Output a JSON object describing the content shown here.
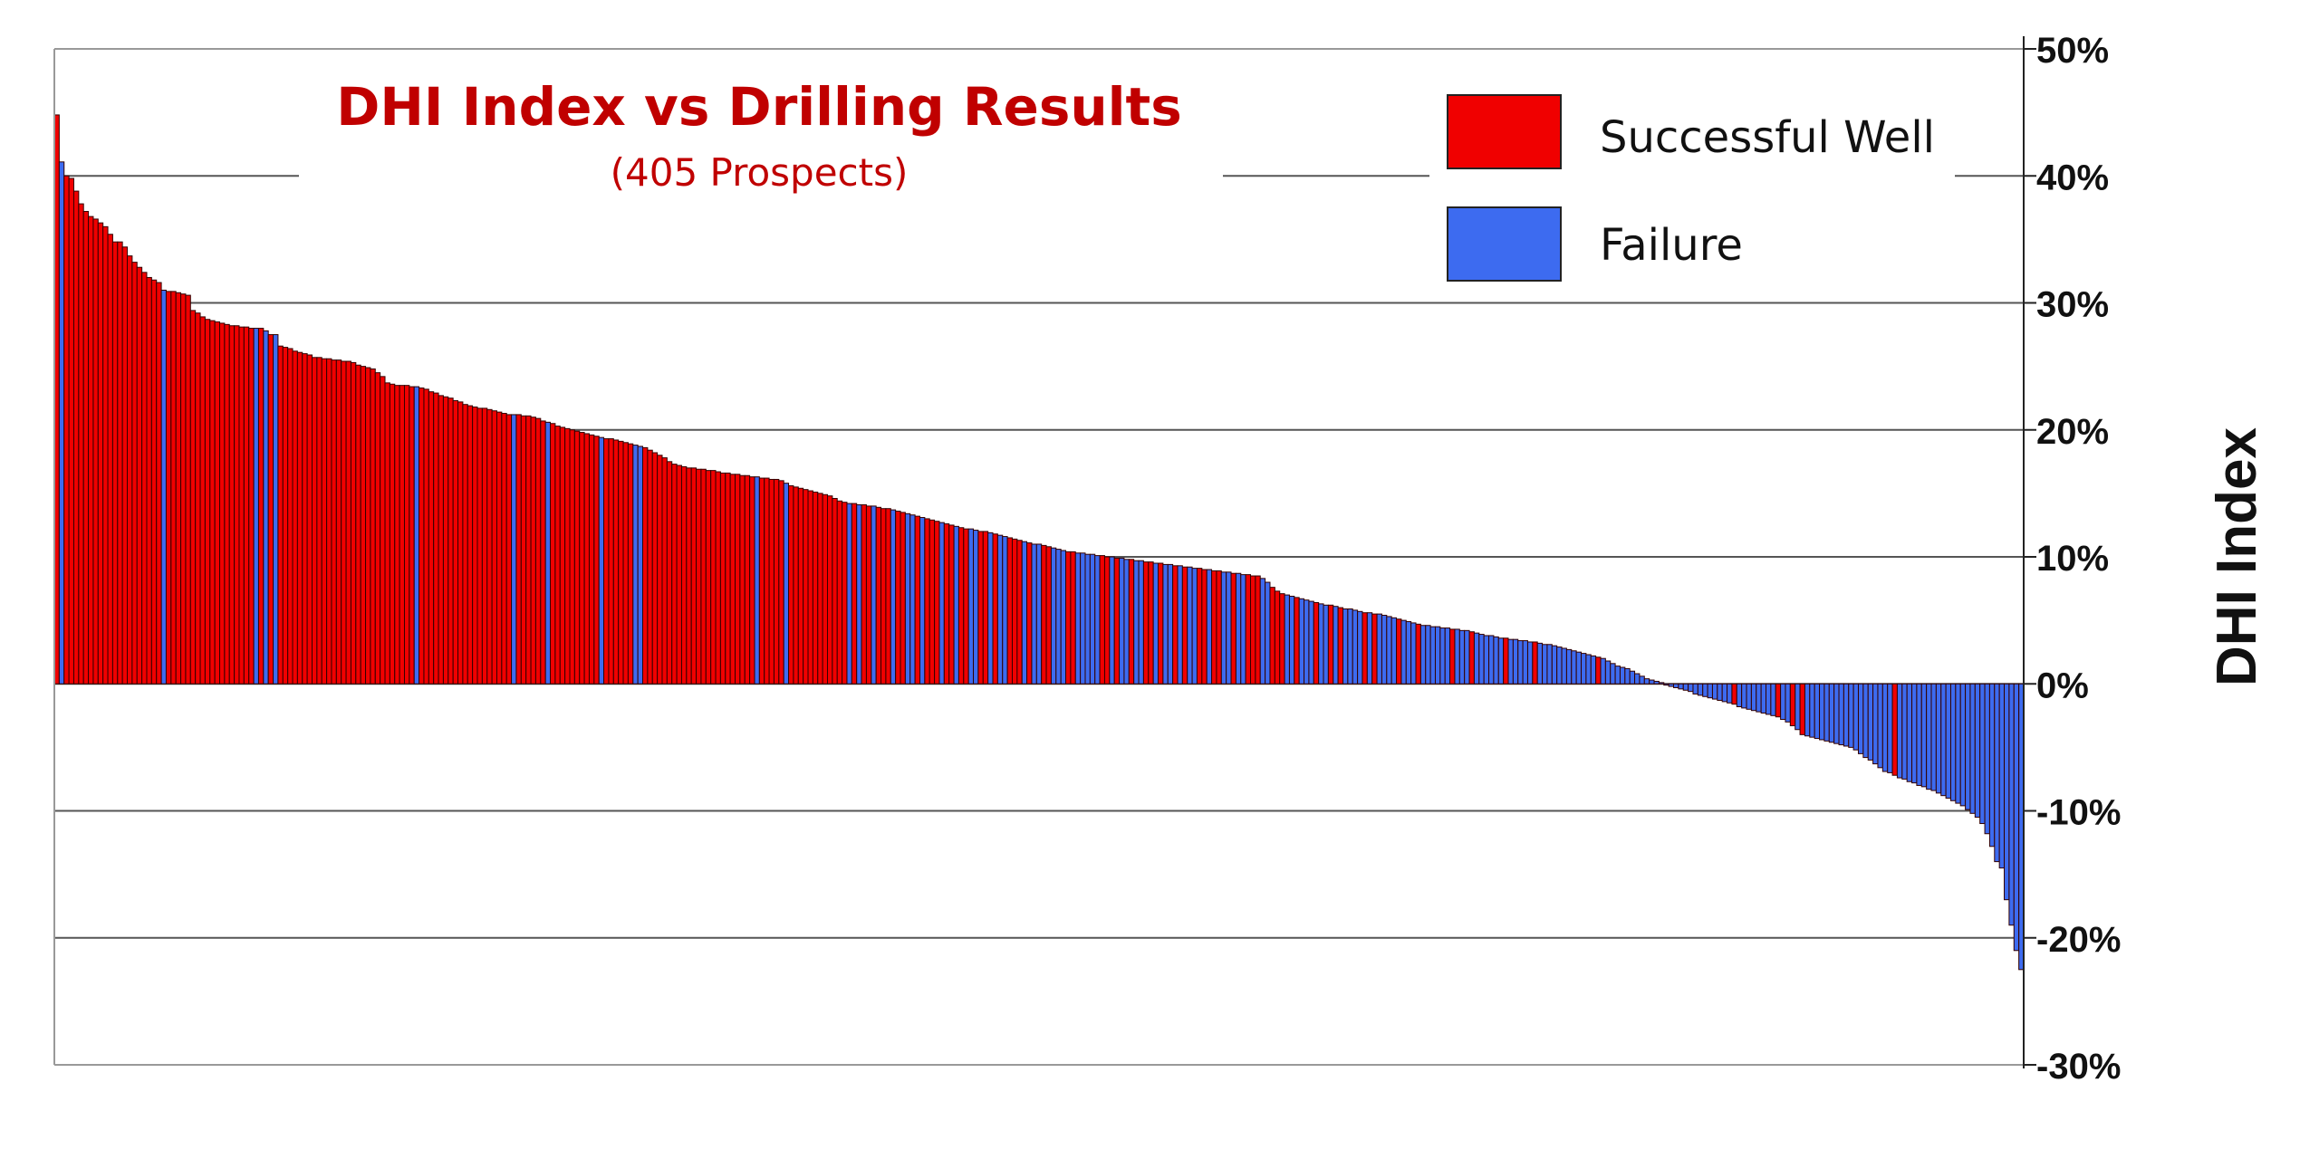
{
  "chart_data": {
    "type": "bar",
    "title": "DHI Index vs Drilling Results",
    "subtitle": "(405 Prospects)",
    "xlabel": "",
    "ylabel": "DHI Index",
    "ylim": [
      -30,
      50
    ],
    "y_ticks": [
      50,
      40,
      30,
      20,
      10,
      0,
      -10,
      -20,
      -30
    ],
    "y_tick_labels": [
      "50%",
      "40%",
      "30%",
      "20%",
      "10%",
      "0%",
      "-10%",
      "-20%",
      "-30%"
    ],
    "grid": true,
    "legend_position": "top-right",
    "legend": [
      {
        "key": "S",
        "label": "Successful Well",
        "color": "#F00000"
      },
      {
        "key": "F",
        "label": "Failure",
        "color": "#3D6BF0"
      }
    ],
    "values": [
      44.8,
      41.1,
      40.0,
      39.8,
      38.8,
      37.8,
      37.2,
      36.8,
      36.6,
      36.3,
      36.0,
      35.4,
      34.8,
      34.8,
      34.4,
      33.7,
      33.2,
      32.8,
      32.4,
      32.0,
      31.8,
      31.6,
      31.0,
      30.9,
      30.9,
      30.8,
      30.7,
      30.6,
      29.4,
      29.2,
      28.9,
      28.7,
      28.6,
      28.5,
      28.4,
      28.3,
      28.2,
      28.2,
      28.1,
      28.1,
      28.0,
      28.0,
      28.0,
      27.8,
      27.5,
      27.5,
      26.6,
      26.5,
      26.4,
      26.2,
      26.1,
      26.0,
      25.9,
      25.7,
      25.7,
      25.6,
      25.6,
      25.5,
      25.5,
      25.4,
      25.4,
      25.3,
      25.1,
      25.0,
      24.9,
      24.8,
      24.5,
      24.2,
      23.7,
      23.6,
      23.5,
      23.5,
      23.5,
      23.4,
      23.4,
      23.3,
      23.2,
      23.0,
      22.9,
      22.7,
      22.6,
      22.5,
      22.3,
      22.2,
      22.0,
      21.9,
      21.8,
      21.7,
      21.7,
      21.6,
      21.5,
      21.4,
      21.3,
      21.2,
      21.2,
      21.2,
      21.1,
      21.1,
      21.0,
      20.9,
      20.7,
      20.6,
      20.5,
      20.3,
      20.2,
      20.1,
      20.0,
      19.9,
      19.8,
      19.7,
      19.6,
      19.5,
      19.4,
      19.3,
      19.3,
      19.2,
      19.1,
      19.0,
      18.9,
      18.8,
      18.7,
      18.6,
      18.4,
      18.2,
      18.0,
      17.8,
      17.5,
      17.3,
      17.2,
      17.1,
      17.0,
      17.0,
      16.9,
      16.9,
      16.8,
      16.8,
      16.7,
      16.6,
      16.6,
      16.5,
      16.5,
      16.4,
      16.4,
      16.3,
      16.3,
      16.2,
      16.2,
      16.1,
      16.1,
      16.0,
      15.8,
      15.6,
      15.5,
      15.4,
      15.3,
      15.2,
      15.1,
      15.0,
      14.9,
      14.8,
      14.6,
      14.4,
      14.3,
      14.2,
      14.2,
      14.1,
      14.1,
      14.0,
      14.0,
      13.9,
      13.8,
      13.8,
      13.7,
      13.6,
      13.5,
      13.4,
      13.3,
      13.2,
      13.1,
      13.0,
      12.9,
      12.8,
      12.7,
      12.6,
      12.5,
      12.4,
      12.3,
      12.2,
      12.2,
      12.1,
      12.0,
      12.0,
      11.9,
      11.8,
      11.7,
      11.6,
      11.5,
      11.4,
      11.3,
      11.2,
      11.1,
      11.0,
      11.0,
      10.9,
      10.8,
      10.7,
      10.6,
      10.5,
      10.4,
      10.4,
      10.3,
      10.3,
      10.2,
      10.2,
      10.1,
      10.1,
      10.0,
      10.0,
      9.9,
      9.9,
      9.8,
      9.8,
      9.7,
      9.7,
      9.6,
      9.6,
      9.5,
      9.5,
      9.4,
      9.4,
      9.3,
      9.3,
      9.2,
      9.2,
      9.1,
      9.1,
      9.0,
      9.0,
      8.9,
      8.9,
      8.8,
      8.8,
      8.7,
      8.7,
      8.6,
      8.6,
      8.5,
      8.5,
      8.3,
      8.0,
      7.6,
      7.3,
      7.1,
      7.0,
      6.9,
      6.8,
      6.7,
      6.6,
      6.5,
      6.4,
      6.3,
      6.2,
      6.2,
      6.1,
      6.0,
      5.9,
      5.9,
      5.8,
      5.7,
      5.6,
      5.6,
      5.5,
      5.5,
      5.4,
      5.3,
      5.2,
      5.1,
      5.0,
      4.9,
      4.8,
      4.7,
      4.6,
      4.6,
      4.5,
      4.5,
      4.4,
      4.4,
      4.3,
      4.3,
      4.2,
      4.2,
      4.1,
      4.0,
      3.9,
      3.8,
      3.8,
      3.7,
      3.6,
      3.6,
      3.5,
      3.5,
      3.4,
      3.4,
      3.3,
      3.3,
      3.2,
      3.1,
      3.1,
      3.0,
      2.9,
      2.8,
      2.7,
      2.6,
      2.5,
      2.4,
      2.3,
      2.2,
      2.1,
      2.0,
      1.8,
      1.6,
      1.4,
      1.3,
      1.2,
      1.0,
      0.8,
      0.6,
      0.4,
      0.3,
      0.2,
      0.1,
      -0.1,
      -0.2,
      -0.3,
      -0.4,
      -0.5,
      -0.6,
      -0.8,
      -0.9,
      -1.0,
      -1.1,
      -1.2,
      -1.3,
      -1.4,
      -1.5,
      -1.6,
      -1.8,
      -1.9,
      -2.0,
      -2.1,
      -2.2,
      -2.3,
      -2.4,
      -2.5,
      -2.6,
      -2.8,
      -3.0,
      -3.3,
      -3.6,
      -4.0,
      -4.1,
      -4.2,
      -4.3,
      -4.4,
      -4.5,
      -4.6,
      -4.7,
      -4.8,
      -4.9,
      -5.0,
      -5.2,
      -5.5,
      -5.8,
      -6.0,
      -6.3,
      -6.6,
      -6.9,
      -7.0,
      -7.2,
      -7.4,
      -7.5,
      -7.7,
      -7.8,
      -8.0,
      -8.1,
      -8.3,
      -8.4,
      -8.6,
      -8.8,
      -9.0,
      -9.2,
      -9.4,
      -9.6,
      -9.9,
      -10.2,
      -10.5,
      -11.0,
      -11.8,
      -12.8,
      -14.0,
      -14.5,
      -17.0,
      -19.0,
      -21.0,
      -22.5
    ],
    "outcomes": [
      "SFSSSSSSSS",
      "SSSSSSSSSS",
      "SSFSSSSSSS",
      "SSSSSSSSSS",
      "SFSFSFSSSS",
      "SSSSSSSSSS",
      "SSSSSSSSSS",
      "SSSSFSSSSS",
      "SSSSSSSSSS",
      "SSSSFSSSSS",
      "SFSSSSSSSS",
      "SSFSSSSSSF",
      "FSSSSSSSSS",
      "SSSSSSSSSS",
      "SSSSFSSSSS",
      "FSSSSSSSSS",
      "SSSFSFSSFS",
      "SSFSSFFSFS",
      "SSFSSFSSFF",
      "SSFSFFSSSF",
      "SFFSSFFFSS",
      "FFFFFSSFSF",
      "FSFFSSFSFF",
      "SFSFFSSFSS",
      "FFSFFSSSFF",
      "SSSFFSFFFS",
      "FFSFSFFFFS",
      "FSFFFFSFFF",
      "SFFFFFFSFF",
      "FSFFFFFFSF",
      "FFFFSFFFFF",
      "FFFFFFFSFF",
      "FFFFFFFFFF",
      "FFFFFFFFFF",
      "FFFFFSFFFF",
      "FFFFSFFSFS",
      "FFFFFFFFFF",
      "FFFFFFFFSF",
      "FFFFFFFFFF",
      "FFFFFFFFFF",
      "FFFFF"
    ]
  }
}
